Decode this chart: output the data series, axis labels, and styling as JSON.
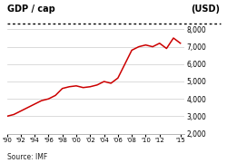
{
  "title_left": "GDP / cap",
  "title_right": "(USD)",
  "source": "Source: IMF",
  "years": [
    1990,
    1991,
    1992,
    1993,
    1994,
    1995,
    1996,
    1997,
    1998,
    1999,
    2000,
    2001,
    2002,
    2003,
    2004,
    2005,
    2006,
    2007,
    2008,
    2009,
    2010,
    2011,
    2012,
    2013,
    2014,
    2015
  ],
  "values": [
    3000,
    3100,
    3300,
    3500,
    3700,
    3900,
    4000,
    4200,
    4600,
    4700,
    4750,
    4650,
    4700,
    4800,
    5000,
    4900,
    5200,
    6000,
    6800,
    7000,
    7100,
    7000,
    7200,
    6900,
    7500,
    7200
  ],
  "line_color": "#cc0000",
  "bg_color": "#ffffff",
  "plot_bg_color": "#ffffff",
  "grid_color": "#cccccc",
  "ylim": [
    2000,
    8000
  ],
  "yticks": [
    2000,
    3000,
    4000,
    5000,
    6000,
    7000,
    8000
  ],
  "xtick_years": [
    1990,
    1992,
    1994,
    1996,
    1998,
    2000,
    2002,
    2004,
    2006,
    2008,
    2010,
    2012,
    2015
  ],
  "xtick_labels": [
    "'90",
    "'92",
    "'94",
    "'96",
    "'98",
    "'00",
    "'02",
    "'04",
    "'06",
    "'08",
    "'10",
    "'12",
    "'15"
  ]
}
